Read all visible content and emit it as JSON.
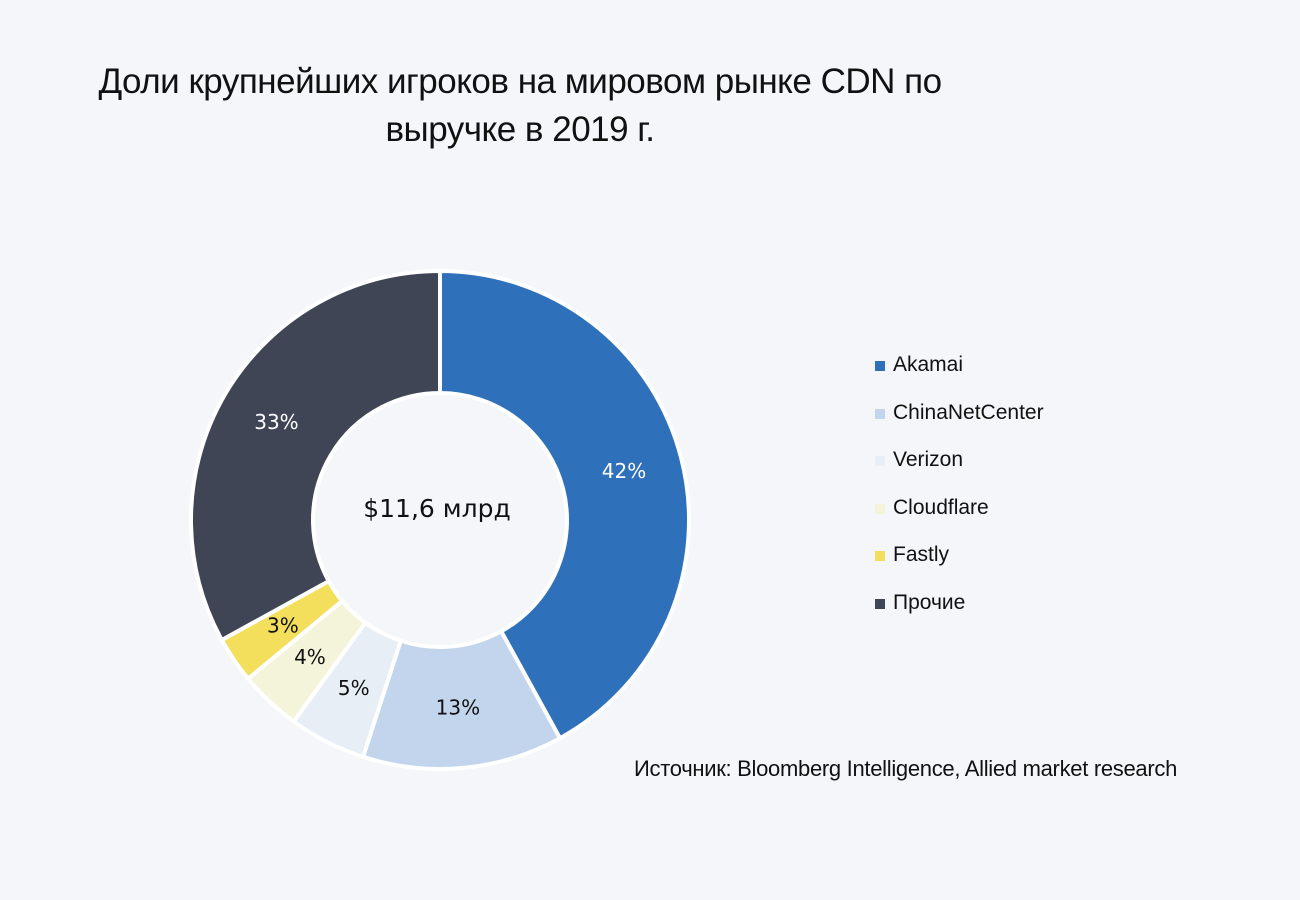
{
  "title_line1": "Доли крупнейших игроков на мировом рынке CDN по",
  "title_line2": "выручке в 2019 г.",
  "source": "Источник: Bloomberg Intelligence, Allied market research",
  "chart_data": {
    "type": "pie",
    "variant": "donut",
    "title": "Доли крупнейших игроков на мировом рынке CDN по выручке в 2019 г.",
    "center_label": "$11,6 млрд",
    "categories": [
      "Akamai",
      "ChinaNetCenter",
      "Verizon",
      "Cloudflare",
      "Fastly",
      "Прочие"
    ],
    "values": [
      42,
      13,
      5,
      4,
      3,
      33
    ],
    "labels": [
      "42%",
      "13%",
      "5%",
      "4%",
      "3%",
      "33%"
    ],
    "colors": [
      "#2e70ba",
      "#c3d5ec",
      "#e7eef6",
      "#f4f4da",
      "#f4df5c",
      "#3f4555"
    ],
    "label_colors": [
      "#ffffff",
      "#111111",
      "#111111",
      "#111111",
      "#111111",
      "#ffffff"
    ],
    "legend_position": "right"
  }
}
